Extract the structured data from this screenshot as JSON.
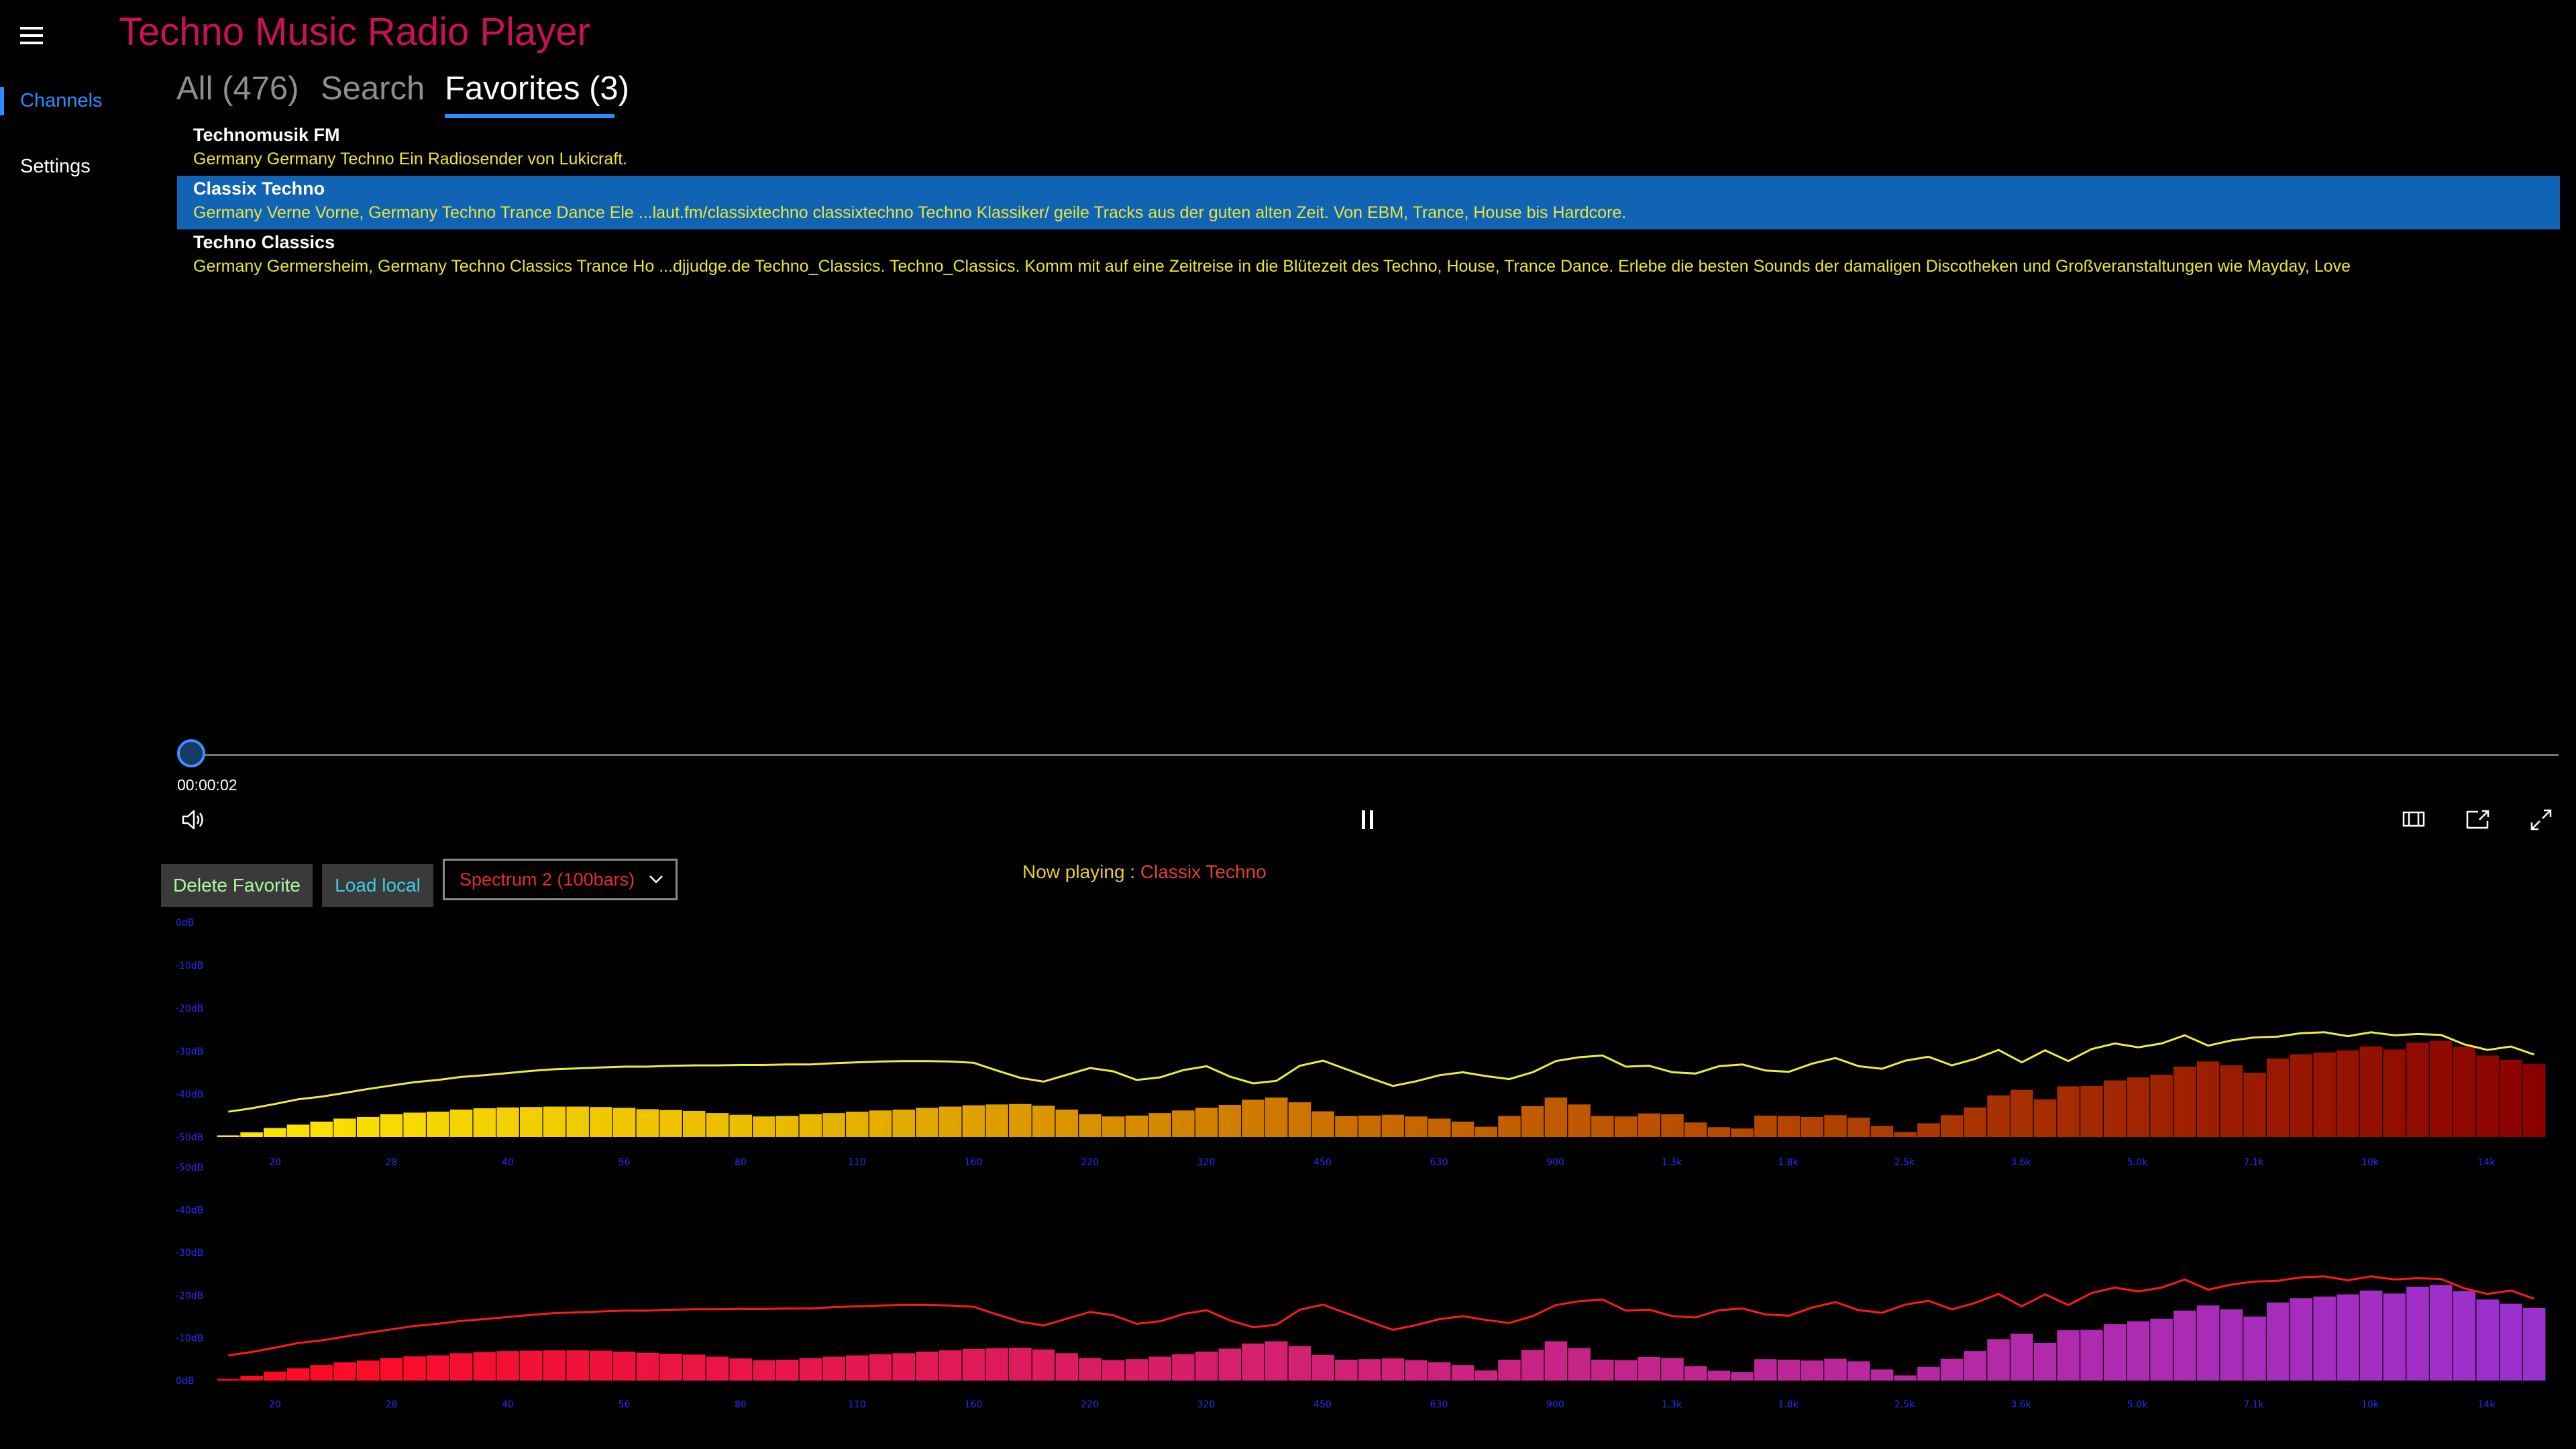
{
  "app": {
    "title": "Techno Music Radio Player"
  },
  "nav": {
    "hamburger_icon": "hamburger-menu-icon",
    "items": [
      {
        "label": "Channels",
        "selected": true
      },
      {
        "label": "Settings",
        "selected": false
      }
    ]
  },
  "tabs": [
    {
      "label": "All (476)",
      "selected": false
    },
    {
      "label": "Search",
      "selected": false
    },
    {
      "label": "Favorites (3)",
      "selected": true
    }
  ],
  "channels": [
    {
      "name": "Technomusik FM",
      "description": "Germany Germany Techno Ein Radiosender von Lukicraft.",
      "selected": false
    },
    {
      "name": "Classix Techno",
      "description": "Germany Verne Vorne, Germany Techno Trance Dance  Ele ...laut.fm/classixtechno classixtechno  Techno Klassiker/ geile Tracks aus der guten alten Zeit. Von EBM, Trance, House bis Hardcore.",
      "selected": true
    },
    {
      "name": "Techno Classics",
      "description": "Germany Germersheim, Germany Techno Classics Trance Ho ...djjudge.de Techno_Classics.  Techno_Classics. Komm mit auf eine Zeitreise in die Blütezeit des Techno, House, Trance  Dance. Erlebe die besten Sounds der damaligen Discotheken und Großveranstaltungen wie Mayday, Love",
      "selected": false
    }
  ],
  "player": {
    "elapsed": "00:00:02",
    "progress": 0.0,
    "icons": [
      "volume-icon",
      "pause-icon",
      "aspect-ratio-icon",
      "cast-icon",
      "fullscreen-icon"
    ]
  },
  "controls": {
    "delete_favorite": "Delete Favorite",
    "load_local": "Load local",
    "spectrum_mode": "Spectrum 2 (100bars)",
    "now_playing_label": "Now playing : ",
    "now_playing_value": "Classix Techno"
  },
  "colors": {
    "accent": "#2b8cff",
    "title": "#c8105c",
    "selected_row": "#1164b4",
    "description": "#e9e63a"
  },
  "chart_data": [
    {
      "type": "bar",
      "name": "spectrum-top",
      "y_ticks": [
        "0dB",
        "-10dB",
        "-20dB",
        "-30dB",
        "-40dB",
        "-50dB"
      ],
      "x_ticks": [
        "20",
        "28",
        "40",
        "56",
        "80",
        "110",
        "160",
        "220",
        "320",
        "450",
        "630",
        "900",
        "1.3k",
        "1.8k",
        "2.5k",
        "3.6k",
        "5.0k",
        "7.1k",
        "10k",
        "14k"
      ],
      "ylim": [
        -50,
        0
      ],
      "bars": [
        -49.6,
        -48.9,
        -47.9,
        -47.1,
        -46.4,
        -45.7,
        -45.3,
        -44.7,
        -44.3,
        -44.1,
        -43.6,
        -43.3,
        -43.1,
        -43.0,
        -42.9,
        -42.9,
        -43.0,
        -43.2,
        -43.5,
        -43.7,
        -43.9,
        -44.4,
        -44.8,
        -45.2,
        -45.1,
        -44.7,
        -44.4,
        -44.1,
        -43.8,
        -43.6,
        -43.2,
        -42.9,
        -42.6,
        -42.4,
        -42.3,
        -42.7,
        -43.6,
        -44.7,
        -45.2,
        -45.0,
        -44.4,
        -43.8,
        -43.2,
        -42.5,
        -41.3,
        -40.8,
        -41.9,
        -44.0,
        -45.1,
        -45.0,
        -44.8,
        -45.2,
        -45.7,
        -46.4,
        -47.6,
        -45.1,
        -42.8,
        -40.8,
        -42.4,
        -45.1,
        -45.2,
        -44.5,
        -44.7,
        -46.6,
        -47.7,
        -48.0,
        -45.0,
        -45.1,
        -45.3,
        -44.9,
        -45.5,
        -47.4,
        -48.8,
        -46.8,
        -44.9,
        -43.1,
        -40.3,
        -39.0,
        -41.2,
        -38.2,
        -38.1,
        -36.8,
        -36.1,
        -35.5,
        -33.6,
        -32.4,
        -33.3,
        -35.0,
        -31.7,
        -30.7,
        -30.3,
        -29.8,
        -28.9,
        -29.6,
        -28.0,
        -27.6,
        -29.0,
        -31.0,
        -32.0,
        -33.0
      ],
      "peak": [
        -44.1,
        -43.3,
        -42.3,
        -41.2,
        -40.6,
        -39.7,
        -38.8,
        -38.0,
        -37.2,
        -36.7,
        -36.0,
        -35.6,
        -35.1,
        -34.6,
        -34.2,
        -34.0,
        -33.8,
        -33.6,
        -33.6,
        -33.4,
        -33.3,
        -33.3,
        -33.2,
        -33.2,
        -33.1,
        -33.1,
        -32.8,
        -32.6,
        -32.4,
        -32.3,
        -32.3,
        -32.4,
        -32.7,
        -34.5,
        -36.2,
        -37.1,
        -35.5,
        -33.9,
        -34.7,
        -36.7,
        -36.1,
        -34.4,
        -33.5,
        -35.9,
        -37.5,
        -36.9,
        -33.4,
        -32.2,
        -34.2,
        -36.2,
        -38.1,
        -37.0,
        -35.6,
        -34.9,
        -35.8,
        -36.5,
        -34.9,
        -32.3,
        -31.4,
        -31.0,
        -33.6,
        -33.4,
        -34.9,
        -35.2,
        -33.5,
        -33.1,
        -34.5,
        -34.8,
        -32.9,
        -31.6,
        -33.5,
        -34.1,
        -32.2,
        -31.3,
        -33.3,
        -31.8,
        -29.7,
        -32.6,
        -29.8,
        -32.3,
        -29.5,
        -28.2,
        -29.1,
        -28.2,
        -26.3,
        -28.7,
        -27.5,
        -26.8,
        -26.6,
        -25.8,
        -25.6,
        -26.5,
        -25.6,
        -26.3,
        -26.0,
        -26.2,
        -28.4,
        -29.7,
        -28.9,
        -30.8
      ]
    },
    {
      "type": "bar",
      "name": "spectrum-bottom",
      "y_ticks": [
        "-50dB",
        "-40dB",
        "-30dB",
        "-20dB",
        "-10dB",
        "0dB"
      ],
      "x_ticks": [
        "20",
        "28",
        "40",
        "56",
        "80",
        "110",
        "160",
        "220",
        "320",
        "450",
        "630",
        "900",
        "1.3k",
        "1.8k",
        "2.5k",
        "3.6k",
        "5.0k",
        "7.1k",
        "10k",
        "14k"
      ],
      "ylim": [
        -50,
        0
      ],
      "bars": [
        -49.6,
        -48.9,
        -47.9,
        -47.1,
        -46.4,
        -45.7,
        -45.3,
        -44.7,
        -44.3,
        -44.1,
        -43.6,
        -43.3,
        -43.1,
        -43.0,
        -42.9,
        -42.9,
        -43.0,
        -43.2,
        -43.5,
        -43.7,
        -43.9,
        -44.4,
        -44.8,
        -45.2,
        -45.1,
        -44.7,
        -44.4,
        -44.1,
        -43.8,
        -43.6,
        -43.2,
        -42.9,
        -42.6,
        -42.4,
        -42.3,
        -42.7,
        -43.6,
        -44.7,
        -45.2,
        -45.0,
        -44.4,
        -43.8,
        -43.2,
        -42.5,
        -41.3,
        -40.8,
        -41.9,
        -44.0,
        -45.1,
        -45.0,
        -44.8,
        -45.2,
        -45.7,
        -46.4,
        -47.6,
        -45.1,
        -42.8,
        -40.8,
        -42.4,
        -45.1,
        -45.2,
        -44.5,
        -44.7,
        -46.6,
        -47.7,
        -48.0,
        -45.0,
        -45.1,
        -45.3,
        -44.9,
        -45.5,
        -47.4,
        -48.8,
        -46.8,
        -44.9,
        -43.1,
        -40.3,
        -39.0,
        -41.2,
        -38.2,
        -38.1,
        -36.8,
        -36.1,
        -35.5,
        -33.6,
        -32.4,
        -33.3,
        -35.0,
        -31.7,
        -30.7,
        -30.3,
        -29.8,
        -28.9,
        -29.6,
        -28.0,
        -27.6,
        -29.0,
        -31.0,
        -32.0,
        -33.0
      ],
      "peak": [
        -44.1,
        -43.3,
        -42.3,
        -41.2,
        -40.6,
        -39.7,
        -38.8,
        -38.0,
        -37.2,
        -36.7,
        -36.0,
        -35.6,
        -35.1,
        -34.6,
        -34.2,
        -34.0,
        -33.8,
        -33.6,
        -33.6,
        -33.4,
        -33.3,
        -33.3,
        -33.2,
        -33.2,
        -33.1,
        -33.1,
        -32.8,
        -32.6,
        -32.4,
        -32.3,
        -32.3,
        -32.4,
        -32.7,
        -34.5,
        -36.2,
        -37.1,
        -35.5,
        -33.9,
        -34.7,
        -36.7,
        -36.1,
        -34.4,
        -33.5,
        -35.9,
        -37.5,
        -36.9,
        -33.4,
        -32.2,
        -34.2,
        -36.2,
        -38.1,
        -37.0,
        -35.6,
        -34.9,
        -35.8,
        -36.5,
        -34.9,
        -32.3,
        -31.4,
        -31.0,
        -33.6,
        -33.4,
        -34.9,
        -35.2,
        -33.5,
        -33.1,
        -34.5,
        -34.8,
        -32.9,
        -31.6,
        -33.5,
        -34.1,
        -32.2,
        -31.3,
        -33.3,
        -31.8,
        -29.7,
        -32.6,
        -29.8,
        -32.3,
        -29.5,
        -28.2,
        -29.1,
        -28.2,
        -26.3,
        -28.7,
        -27.5,
        -26.8,
        -26.6,
        -25.8,
        -25.6,
        -26.5,
        -25.6,
        -26.3,
        -26.0,
        -26.2,
        -28.4,
        -29.7,
        -28.9,
        -30.8
      ]
    }
  ]
}
